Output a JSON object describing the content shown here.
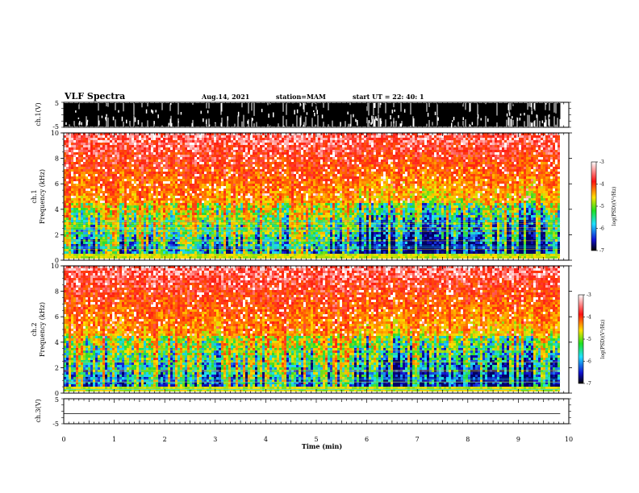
{
  "header": {
    "title": "VLF Spectra",
    "date": "Aug.14, 2021",
    "station": "station=MAM",
    "start_ut": "start  UT  =   22: 40: 1"
  },
  "colors": {
    "white": "#ffffff",
    "red": "#ff1010",
    "yellow": "#ffe000",
    "green": "#20e020",
    "cyan": "#20e0ff",
    "blue": "#1010d0",
    "navy": "#000060"
  },
  "chart_data": [
    {
      "id": "ch1-waveform",
      "type": "line",
      "ylabel": "ch.1(V)",
      "ylim": [
        -5,
        5
      ],
      "ytick_labels": [
        "5",
        "-5"
      ],
      "description_values": {
        "amplitude_range_v": [
          -5,
          5
        ]
      }
    },
    {
      "id": "ch1-spectrogram",
      "type": "heatmap",
      "ylabel_line1": "ch.1",
      "ylabel_line2": "Frequency  (kHz)",
      "ylim": [
        0,
        10
      ],
      "ytick_labels": [
        "0",
        "2",
        "4",
        "6",
        "8",
        "10"
      ],
      "xlim": [
        0,
        9.83
      ],
      "colorbar": {
        "label": "log(PSD)(V²/Hz)",
        "range": [
          -7,
          -3
        ],
        "tick_labels": [
          "-3",
          "-4",
          "-5",
          "-6",
          "-7"
        ]
      },
      "x_values_min": [
        0.25,
        1.0,
        2.5,
        2.9,
        3.8,
        4.9,
        5.8,
        5.95,
        7.5,
        9.1
      ]
    },
    {
      "id": "ch2-spectrogram",
      "type": "heatmap",
      "ylabel_line1": "ch.2",
      "ylabel_line2": "Frequency  (kHz)",
      "ylim": [
        0,
        10
      ],
      "ytick_labels": [
        "0",
        "2",
        "4",
        "6",
        "8",
        "10"
      ],
      "xlim": [
        0,
        9.83
      ],
      "colorbar": {
        "label": "log(PSD)(V²/Hz)",
        "range": [
          -7,
          -3
        ],
        "tick_labels": [
          "-3",
          "-4",
          "-5",
          "-6",
          "-7"
        ]
      }
    },
    {
      "id": "ch3-waveform",
      "type": "line",
      "ylabel": "ch.3(V)",
      "ylim": [
        -5,
        5
      ],
      "ytick_labels": [
        "5",
        "-5"
      ],
      "x": [
        0,
        9.83
      ],
      "y": [
        -1,
        -1
      ]
    }
  ],
  "xaxis": {
    "label": "Time  (min)",
    "xlim": [
      0,
      10
    ],
    "tick_labels": [
      "0",
      "1",
      "2",
      "3",
      "4",
      "5",
      "6",
      "7",
      "8",
      "9",
      "10"
    ]
  }
}
